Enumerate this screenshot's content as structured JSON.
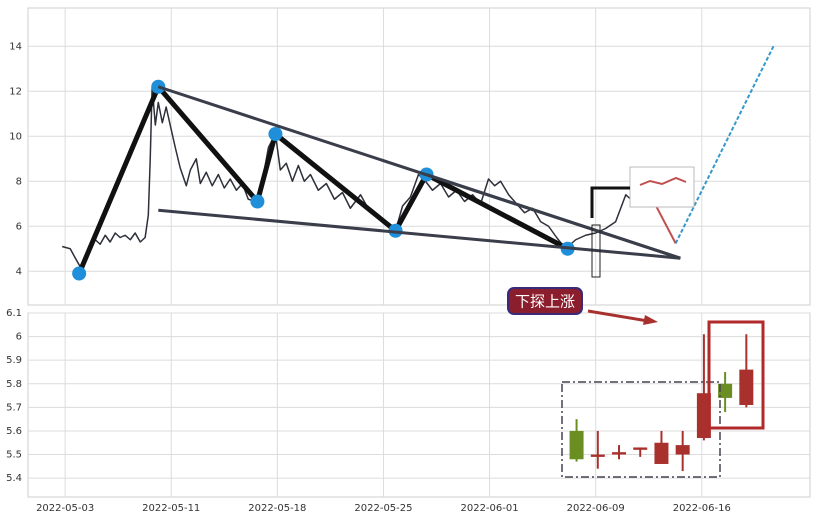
{
  "chart_data": [
    {
      "type": "line",
      "xlim": [
        -1.75,
        35.1
      ],
      "ylim": [
        2.5,
        15.7
      ],
      "yticks": [
        4,
        6,
        8,
        10,
        12,
        14
      ],
      "grid": true,
      "series": [
        {
          "color": "#2d2f3a",
          "x": [
            -0.14,
            0.24,
            0.47,
            0.71,
            0.94,
            1.18,
            1.42,
            1.65,
            1.89,
            2.12,
            2.36,
            2.59,
            2.83,
            3.07,
            3.3,
            3.54,
            3.77,
            3.92,
            4.01,
            4.1,
            4.25,
            4.39,
            4.58,
            4.76,
            4.95,
            5.19,
            5.42,
            5.71,
            5.9,
            6.18,
            6.37,
            6.65,
            6.93,
            7.22,
            7.5,
            7.78,
            8.07,
            8.35,
            8.63,
            9.01,
            9.29,
            9.58,
            9.91,
            10.14,
            10.42,
            10.71,
            10.99,
            11.27,
            11.56,
            11.93,
            12.31,
            12.69,
            13.07,
            13.44,
            13.92,
            14.39,
            14.86,
            15.24,
            15.57,
            15.9,
            16.27,
            16.65,
            16.98,
            17.31,
            17.69,
            18.07,
            18.44,
            18.82,
            19.2,
            19.58,
            19.95,
            20.24,
            20.52,
            20.9,
            21.27,
            21.65,
            22.03,
            22.41,
            22.78,
            23.16,
            23.58,
            24.06,
            24.53,
            25.0,
            25.47,
            25.94,
            26.42,
            26.65
          ],
          "values": [
            5.1,
            5.0,
            4.6,
            4.2,
            4.6,
            5.0,
            5.4,
            5.2,
            5.6,
            5.3,
            5.7,
            5.5,
            5.6,
            5.4,
            5.7,
            5.3,
            5.5,
            6.5,
            9.0,
            12.2,
            10.5,
            11.5,
            10.6,
            11.3,
            10.5,
            9.5,
            8.6,
            7.8,
            8.5,
            9.0,
            7.9,
            8.4,
            7.8,
            8.3,
            7.7,
            8.1,
            7.6,
            7.9,
            7.2,
            7.1,
            8.0,
            9.5,
            10.1,
            8.5,
            8.8,
            8.0,
            8.7,
            8.0,
            8.3,
            7.6,
            7.9,
            7.2,
            7.5,
            6.8,
            7.4,
            6.6,
            6.3,
            6.0,
            5.8,
            6.9,
            7.3,
            8.3,
            8.0,
            7.6,
            7.9,
            7.3,
            7.6,
            7.1,
            7.4,
            7.0,
            8.1,
            7.8,
            8.0,
            7.4,
            7.0,
            6.6,
            6.8,
            6.2,
            6.0,
            5.5,
            5.0,
            5.4,
            5.6,
            5.7,
            5.9,
            6.2,
            7.4,
            7.2
          ]
        },
        {
          "color": "#111111",
          "markers": true,
          "marker_color": "#1e8fd8",
          "x": [
            0.66,
            4.39,
            9.06,
            9.91,
            15.57,
            17.03,
            23.68
          ],
          "values": [
            3.9,
            12.2,
            7.1,
            10.1,
            5.8,
            8.3,
            5.0
          ]
        },
        {
          "color": "#3a3d4a",
          "x": [
            4.39,
            28.99
          ],
          "values": [
            12.2,
            4.58
          ]
        },
        {
          "color": "#3a3d4a",
          "x": [
            4.39,
            28.99
          ],
          "values": [
            6.71,
            4.58
          ]
        },
        {
          "color": "#3a3d4a",
          "x": [
            17.03,
            28.99
          ],
          "values": [
            8.3,
            4.58
          ]
        },
        {
          "color": "#3399cc",
          "x": [
            28.77,
            33.4
          ],
          "values": [
            5.24,
            14.04
          ]
        },
        {
          "color": "#c0504d",
          "x": [
            27.83,
            28.77
          ],
          "values": [
            6.93,
            5.24
          ]
        }
      ]
    },
    {
      "type": "candlestick",
      "xlim": [
        -1.75,
        35.1
      ],
      "ylim": [
        5.32,
        6.1
      ],
      "yticks": [
        5.4,
        5.5,
        5.6,
        5.7,
        5.8,
        5.9,
        6.0,
        6.1
      ],
      "grid": true,
      "xticks": [
        {
          "value": 0,
          "label": "2022-05-03"
        },
        {
          "value": 5,
          "label": "2022-05-11"
        },
        {
          "value": 10,
          "label": "2022-05-18"
        },
        {
          "value": 15,
          "label": "2022-05-25"
        },
        {
          "value": 20,
          "label": "2022-06-01"
        },
        {
          "value": 25,
          "label": "2022-06-09"
        },
        {
          "value": 30,
          "label": "2022-06-16"
        }
      ],
      "up_color": "#a8312e",
      "down_color": "#6b8e23",
      "x": [
        24.1,
        25.1,
        26.1,
        27.1,
        28.1,
        29.1,
        30.1,
        31.1,
        32.1
      ],
      "open": [
        5.6,
        5.49,
        5.5,
        5.52,
        5.46,
        5.5,
        5.57,
        5.8,
        5.71
      ],
      "close": [
        5.48,
        5.5,
        5.51,
        5.53,
        5.55,
        5.54,
        5.76,
        5.74,
        5.86
      ],
      "high": [
        5.65,
        5.6,
        5.54,
        5.53,
        5.6,
        5.6,
        6.01,
        5.85,
        6.01
      ],
      "low": [
        5.47,
        5.44,
        5.48,
        5.49,
        5.46,
        5.43,
        5.56,
        5.68,
        5.7
      ],
      "annotation": "下探上涨"
    }
  ]
}
